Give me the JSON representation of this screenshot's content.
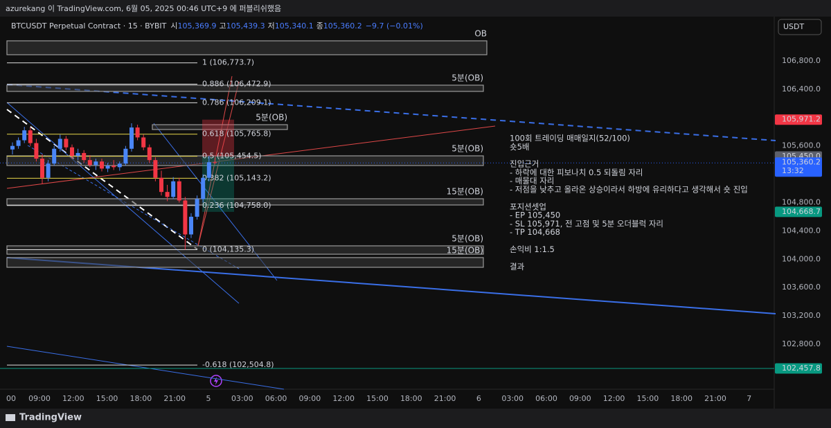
{
  "header": {
    "watermark": "azurekang 이 TradingView.com, 6월 05, 2025 00:46 UTC+9 에 퍼블리쉬했음",
    "symbol": "BTCUSDT Perpetual Contract · 15 · BYBIT",
    "ohlc": [
      {
        "label": "시",
        "value": "105,369.9"
      },
      {
        "label": "고",
        "value": "105,439.3"
      },
      {
        "label": "저",
        "value": "105,340.1"
      },
      {
        "label": "종",
        "value": "105,360.2"
      }
    ],
    "change": "−9.7 (−0.01%)",
    "currency": "USDT"
  },
  "price_axis": {
    "ticks": [
      {
        "value": 106800,
        "label": "106,800.0"
      },
      {
        "value": 106400,
        "label": "106,400.0"
      },
      {
        "value": 105600,
        "label": "105,600.0"
      },
      {
        "value": 104800,
        "label": "104,800.0"
      },
      {
        "value": 104400,
        "label": "104,400.0"
      },
      {
        "value": 104000,
        "label": "104,000.0"
      },
      {
        "value": 103600,
        "label": "103,600.0"
      },
      {
        "value": 103200,
        "label": "103,200.0"
      },
      {
        "value": 102800,
        "label": "102,800.0"
      }
    ]
  },
  "price_labels": [
    {
      "value": 105971.2,
      "label": "105,971.2",
      "color": "#f23645"
    },
    {
      "value": 105450,
      "label": "105,450.0",
      "color": "#5d606b"
    },
    {
      "value": 105360.2,
      "label": "105,360.2",
      "sub": "13:32",
      "color": "#2962ff"
    },
    {
      "value": 104668.7,
      "label": "104,668.7",
      "color": "#089981"
    },
    {
      "value": 102457.8,
      "label": "102,457.8",
      "color": "#089981"
    }
  ],
  "time_axis": [
    "00",
    "09:00",
    "12:00",
    "15:00",
    "18:00",
    "21:00",
    "5",
    "03:00",
    "06:00",
    "09:00",
    "12:00",
    "15:00",
    "18:00",
    "21:00",
    "6",
    "03:00",
    "06:00",
    "09:00",
    "12:00",
    "15:00",
    "18:00",
    "21:00",
    "7"
  ],
  "fib_levels": [
    {
      "label": "1 (106,773.7)",
      "value": 106773.7,
      "color": "#e0e0e0"
    },
    {
      "label": "0.886 (106,472.9)",
      "value": 106472.9,
      "color": "#e0e0e0"
    },
    {
      "label": "0.786 (106,209.1)",
      "value": 106209.1,
      "color": "#e0e0e0"
    },
    {
      "label": "0.618 (105,765.8)",
      "value": 105765.8,
      "color": "#e8d84a"
    },
    {
      "label": "0.5 (105,454.5)",
      "value": 105454.5,
      "color": "#e8d84a"
    },
    {
      "label": "0.382 (105,143.2)",
      "value": 105143.2,
      "color": "#e8d84a"
    },
    {
      "label": "0.236 (104,758.0)",
      "value": 104758,
      "color": "#e0e0e0"
    },
    {
      "label": "0 (104,135.3)",
      "value": 104135.3,
      "color": "#e0e0e0"
    },
    {
      "label": "-0.618 (102,504.8)",
      "value": 102504.8,
      "color": "#e0e0e0"
    }
  ],
  "order_blocks": [
    {
      "label": "OB",
      "top": 107084,
      "bottom": 106888
    },
    {
      "label": "5분(OB)",
      "top": 106458,
      "bottom": 106370
    },
    {
      "label": "5분(OB)",
      "top": 105900,
      "bottom": 105832
    },
    {
      "label": "5분(OB)",
      "top": 105460,
      "bottom": 105323
    },
    {
      "label": "15분(OB)",
      "top": 104854,
      "bottom": 104766
    },
    {
      "label": "5분(OB)",
      "top": 104189,
      "bottom": 104071
    },
    {
      "label": "15분(OB)",
      "top": 104023,
      "bottom": 103886
    }
  ],
  "candles": [
    [
      105550,
      105650,
      105480,
      105600
    ],
    [
      105600,
      105720,
      105560,
      105680
    ],
    [
      105680,
      105870,
      105640,
      105820
    ],
    [
      105820,
      105860,
      105600,
      105640
    ],
    [
      105640,
      105700,
      105380,
      105420
    ],
    [
      105420,
      105480,
      105060,
      105150
    ],
    [
      105150,
      105400,
      105100,
      105350
    ],
    [
      105350,
      105600,
      105320,
      105560
    ],
    [
      105560,
      105760,
      105520,
      105700
    ],
    [
      105700,
      105740,
      105540,
      105580
    ],
    [
      105580,
      105620,
      105420,
      105460
    ],
    [
      105460,
      105560,
      105400,
      105500
    ],
    [
      105500,
      105540,
      105360,
      105400
    ],
    [
      105400,
      105470,
      105300,
      105330
    ],
    [
      105330,
      105420,
      105260,
      105380
    ],
    [
      105380,
      105420,
      105240,
      105280
    ],
    [
      105280,
      105360,
      105230,
      105320
    ],
    [
      105320,
      105400,
      105260,
      105300
    ],
    [
      105300,
      105380,
      105250,
      105350
    ],
    [
      105350,
      105600,
      105320,
      105560
    ],
    [
      105560,
      105920,
      105520,
      105860
    ],
    [
      105860,
      105900,
      105680,
      105720
    ],
    [
      105720,
      105760,
      105540,
      105580
    ],
    [
      105580,
      105620,
      105360,
      105400
    ],
    [
      105400,
      105440,
      105100,
      105150
    ],
    [
      105150,
      105250,
      104900,
      104950
    ],
    [
      104950,
      105050,
      104820,
      104880
    ],
    [
      104880,
      105160,
      104850,
      105100
    ],
    [
      105100,
      105150,
      104800,
      104830
    ],
    [
      104830,
      104880,
      104135.3,
      104350
    ],
    [
      104350,
      104650,
      104300,
      104600
    ],
    [
      104600,
      104900,
      104560,
      104850
    ],
    [
      104850,
      105200,
      104800,
      105150
    ],
    [
      105150,
      105460,
      105100,
      105369.9
    ],
    [
      105369.9,
      105439.3,
      105340.1,
      105360.2
    ]
  ],
  "annotation": [
    [
      "100회 트레이딩 매매일지(52/100)",
      "숏5배"
    ],
    [
      "진입근거",
      "- 하락에 대한 피보나치 0.5 되돌림 자리",
      "- 매물대 자리",
      "- 저점을 낮추고 올라온 상승이라서 하방에 유리하다고 생각해서 숏 진입"
    ],
    [
      "포지션셋업",
      "- EP 105,450",
      "- SL 105,971, 전 고점 및 5분 오더블럭 자리",
      "- TP 104,668"
    ],
    [
      "손익비 1:1.5"
    ],
    [
      "결과"
    ]
  ],
  "footer": "TradingView"
}
